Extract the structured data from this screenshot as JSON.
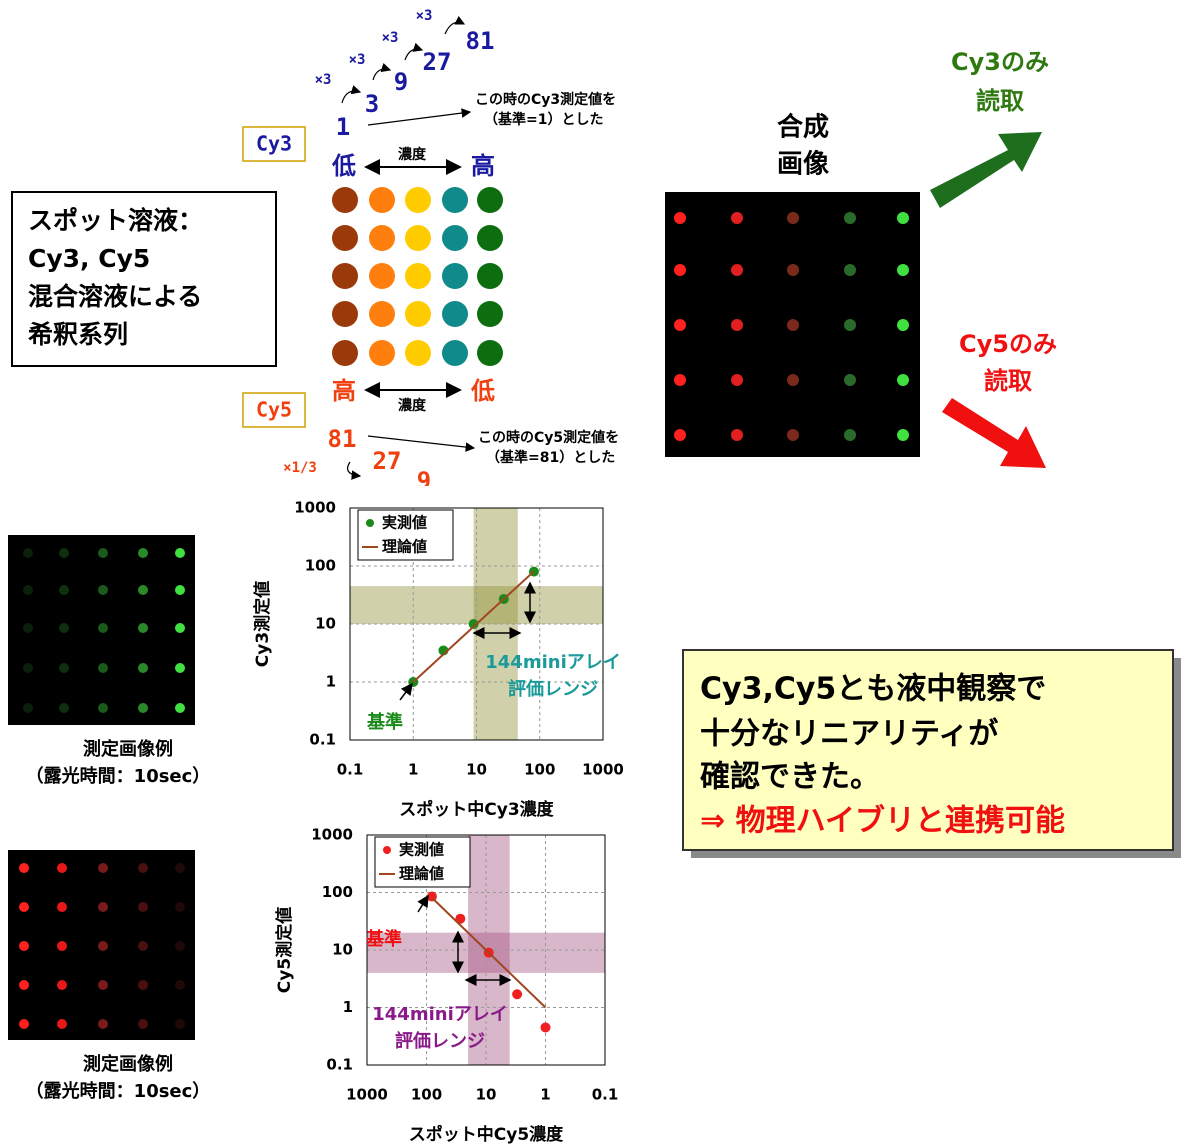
{
  "diagram": {
    "cy3": {
      "label": "Cy3",
      "values": [
        "1",
        "3",
        "9",
        "27",
        "81"
      ],
      "multipliers": [
        "×3",
        "×3",
        "×3",
        "×3"
      ],
      "note": [
        "この時のCy3測定値を",
        "（基準=1）とした"
      ],
      "low": "低",
      "high": "高",
      "concentration": "濃度"
    },
    "cy5": {
      "label": "Cy5",
      "values": [
        "81",
        "27",
        "9"
      ],
      "multiplier": "×1/3",
      "note": [
        "この時のCy5測定値を",
        "（基準=81）とした"
      ],
      "high": "高",
      "low": "低",
      "concentration": "濃度"
    },
    "solution": [
      "スポット溶液：",
      "Cy3, Cy5",
      "混合溶液による",
      "希釈系列"
    ],
    "composite": [
      "合成",
      "画像"
    ],
    "cy3_only": [
      "Cy3のみ",
      "読取"
    ],
    "cy5_only": [
      "Cy5のみ",
      "読取"
    ]
  },
  "captions": [
    [
      "測定画像例",
      "（露光時間：10sec）"
    ],
    [
      "測定画像例",
      "（露光時間：10sec）"
    ]
  ],
  "conclusion": {
    "lines": [
      "Cy3,Cy5とも液中観察で",
      "十分なリニアリティが",
      "確認できた。"
    ],
    "result": "⇒ 物理ハイブリと連携可能"
  },
  "chart_data": [
    {
      "type": "scatter",
      "x_label": "スポット中Cy3濃度",
      "y_label": "Cy3測定値",
      "xlog": true,
      "ylog": true,
      "grid": true,
      "xlim": [
        0.1,
        1000
      ],
      "ylim": [
        0.1,
        1000
      ],
      "xticks": [
        0.1,
        1,
        10,
        100,
        1000
      ],
      "yticks": [
        0.1,
        1,
        10,
        100,
        1000
      ],
      "legend": "top-left",
      "band_color": "#8a8a2a",
      "bands": {
        "x": [
          9,
          45
        ],
        "y": [
          10,
          45
        ]
      },
      "annotations": [
        "144miniアレイ",
        "評価レンジ",
        "基準"
      ],
      "series": [
        {
          "name": "実測値",
          "type": "scatter",
          "color": "#1a8a1a",
          "x": [
            1,
            3,
            9,
            27,
            81
          ],
          "values": [
            1.0,
            3.5,
            10,
            27,
            80
          ]
        },
        {
          "name": "理論値",
          "type": "line",
          "color": "#a0461e",
          "x": [
            1,
            81
          ],
          "values": [
            1,
            81
          ]
        }
      ]
    },
    {
      "type": "scatter",
      "x_label": "スポット中Cy5濃度",
      "y_label": "Cy5測定値",
      "xlog": true,
      "ylog": true,
      "grid": true,
      "xlim": [
        1000,
        0.1
      ],
      "ylim": [
        0.1,
        1000
      ],
      "xticks": [
        1000,
        100,
        10,
        1,
        0.1
      ],
      "yticks": [
        0.1,
        1,
        10,
        100,
        1000
      ],
      "legend": "top-left",
      "band_color": "#a04a7a",
      "bands": {
        "x": [
          20,
          4
        ],
        "y": [
          4,
          20
        ]
      },
      "annotations": [
        "144miniアレイ",
        "評価レンジ",
        "基準"
      ],
      "series": [
        {
          "name": "実測値",
          "type": "scatter",
          "color": "#f02020",
          "x": [
            81,
            27,
            9,
            3,
            1
          ],
          "values": [
            85,
            35,
            9,
            1.7,
            0.45
          ]
        },
        {
          "name": "理論値",
          "type": "line",
          "color": "#a0461e",
          "x": [
            81,
            1
          ],
          "values": [
            81,
            1
          ]
        }
      ]
    }
  ]
}
